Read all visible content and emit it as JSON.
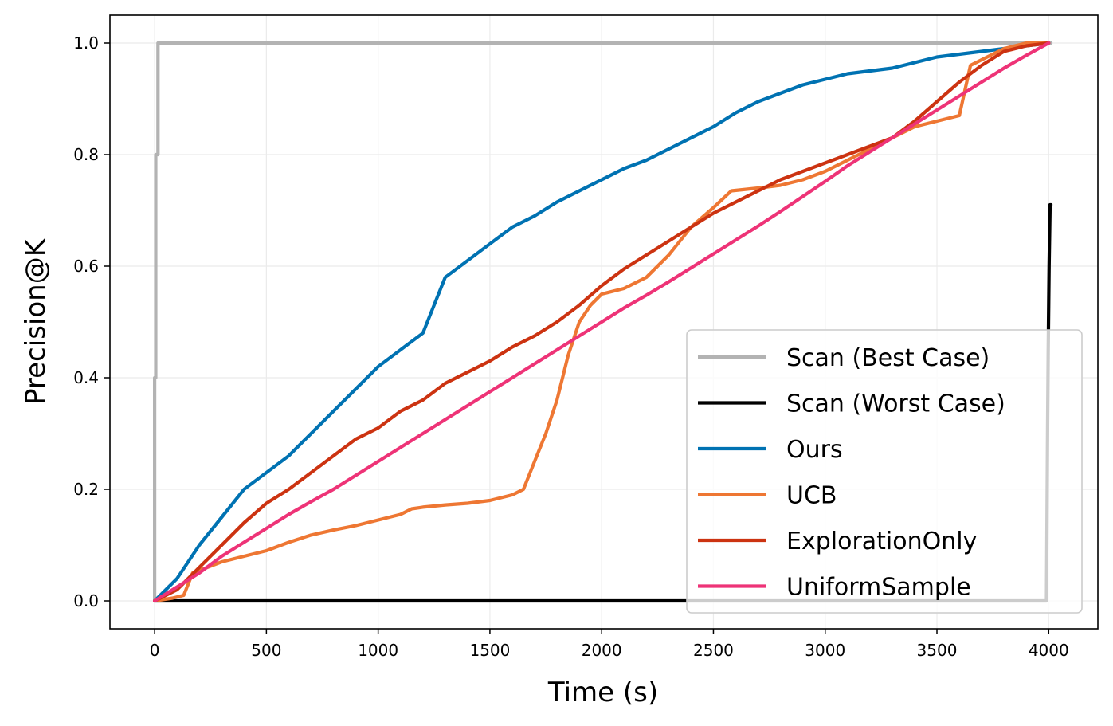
{
  "chart_data": {
    "type": "line",
    "xlabel": "Time (s)",
    "ylabel": "Precision@K",
    "xlim": [
      -200,
      4220
    ],
    "ylim": [
      -0.05,
      1.05
    ],
    "xticks": [
      0,
      500,
      1000,
      1500,
      2000,
      2500,
      3000,
      3500,
      4000
    ],
    "yticks": [
      0.0,
      0.2,
      0.4,
      0.6,
      0.8,
      1.0
    ],
    "xtick_labels": [
      "0",
      "500",
      "1000",
      "1500",
      "2000",
      "2500",
      "3000",
      "3500",
      "4000"
    ],
    "ytick_labels": [
      "0.0",
      "0.2",
      "0.4",
      "0.6",
      "0.8",
      "1.0"
    ],
    "grid": true,
    "legend_position": "bottom-right",
    "series": [
      {
        "name": "Scan (Best Case)",
        "color": "#b3b3b3",
        "x": [
          0,
          0,
          5,
          5,
          15,
          15,
          4010
        ],
        "y": [
          0.0,
          0.4,
          0.4,
          0.8,
          0.8,
          1.0,
          1.0
        ]
      },
      {
        "name": "Scan (Worst Case)",
        "color": "#000000",
        "x": [
          0,
          3990,
          3995,
          3998,
          4002,
          4006,
          4010
        ],
        "y": [
          0.0,
          0.0,
          0.31,
          0.45,
          0.6,
          0.71,
          0.71
        ]
      },
      {
        "name": "Ours",
        "color": "#0072b2",
        "x": [
          0,
          100,
          200,
          300,
          400,
          500,
          600,
          700,
          800,
          900,
          1000,
          1100,
          1200,
          1250,
          1300,
          1400,
          1500,
          1600,
          1700,
          1800,
          1900,
          2000,
          2100,
          2200,
          2300,
          2400,
          2500,
          2600,
          2700,
          2800,
          2900,
          3000,
          3100,
          3200,
          3300,
          3400,
          3500,
          3600,
          3700,
          3800,
          3900,
          4000
        ],
        "y": [
          0.0,
          0.04,
          0.1,
          0.15,
          0.2,
          0.23,
          0.26,
          0.3,
          0.34,
          0.38,
          0.42,
          0.45,
          0.48,
          0.53,
          0.58,
          0.61,
          0.64,
          0.67,
          0.69,
          0.715,
          0.735,
          0.755,
          0.775,
          0.79,
          0.81,
          0.83,
          0.85,
          0.875,
          0.895,
          0.91,
          0.925,
          0.935,
          0.945,
          0.95,
          0.955,
          0.965,
          0.975,
          0.98,
          0.985,
          0.99,
          0.995,
          1.0
        ]
      },
      {
        "name": "UCB",
        "color": "#ee7733",
        "x": [
          0,
          80,
          130,
          170,
          300,
          400,
          500,
          600,
          700,
          800,
          900,
          1000,
          1100,
          1150,
          1200,
          1300,
          1400,
          1500,
          1600,
          1650,
          1700,
          1750,
          1800,
          1850,
          1900,
          1950,
          2000,
          2100,
          2200,
          2300,
          2400,
          2500,
          2580,
          2700,
          2800,
          2900,
          3000,
          3100,
          3200,
          3300,
          3400,
          3500,
          3600,
          3650,
          3700,
          3800,
          3900,
          4000
        ],
        "y": [
          0.0,
          0.005,
          0.01,
          0.05,
          0.07,
          0.08,
          0.09,
          0.105,
          0.118,
          0.127,
          0.135,
          0.145,
          0.155,
          0.165,
          0.168,
          0.172,
          0.175,
          0.18,
          0.19,
          0.2,
          0.25,
          0.3,
          0.36,
          0.44,
          0.5,
          0.53,
          0.55,
          0.56,
          0.58,
          0.62,
          0.67,
          0.705,
          0.735,
          0.74,
          0.745,
          0.755,
          0.77,
          0.79,
          0.81,
          0.83,
          0.85,
          0.86,
          0.87,
          0.96,
          0.97,
          0.99,
          1.0,
          1.0
        ]
      },
      {
        "name": "ExplorationOnly",
        "color": "#cc3311",
        "x": [
          0,
          100,
          200,
          300,
          400,
          500,
          600,
          700,
          800,
          900,
          1000,
          1100,
          1200,
          1300,
          1400,
          1500,
          1600,
          1700,
          1800,
          1900,
          2000,
          2100,
          2200,
          2300,
          2400,
          2500,
          2600,
          2700,
          2800,
          2900,
          3000,
          3100,
          3200,
          3300,
          3400,
          3500,
          3600,
          3700,
          3800,
          3900,
          4000
        ],
        "y": [
          0.0,
          0.02,
          0.06,
          0.1,
          0.14,
          0.175,
          0.2,
          0.23,
          0.26,
          0.29,
          0.31,
          0.34,
          0.36,
          0.39,
          0.41,
          0.43,
          0.455,
          0.475,
          0.5,
          0.53,
          0.565,
          0.595,
          0.62,
          0.645,
          0.67,
          0.695,
          0.715,
          0.735,
          0.755,
          0.77,
          0.785,
          0.8,
          0.815,
          0.83,
          0.86,
          0.895,
          0.93,
          0.96,
          0.985,
          0.995,
          1.0
        ]
      },
      {
        "name": "UniformSample",
        "color": "#ee3377",
        "x": [
          0,
          100,
          200,
          300,
          400,
          500,
          600,
          700,
          800,
          900,
          1000,
          1100,
          1200,
          1300,
          1400,
          1500,
          1600,
          1700,
          1800,
          1900,
          2000,
          2100,
          2200,
          2300,
          2400,
          2500,
          2600,
          2700,
          2800,
          2900,
          3000,
          3100,
          3200,
          3300,
          3400,
          3500,
          3600,
          3700,
          3800,
          3900,
          4000
        ],
        "y": [
          0.0,
          0.025,
          0.05,
          0.08,
          0.105,
          0.13,
          0.155,
          0.178,
          0.2,
          0.225,
          0.25,
          0.275,
          0.3,
          0.325,
          0.35,
          0.375,
          0.4,
          0.425,
          0.45,
          0.475,
          0.5,
          0.525,
          0.548,
          0.572,
          0.597,
          0.622,
          0.647,
          0.672,
          0.698,
          0.725,
          0.752,
          0.78,
          0.805,
          0.83,
          0.855,
          0.88,
          0.905,
          0.93,
          0.955,
          0.978,
          1.0
        ]
      }
    ]
  }
}
